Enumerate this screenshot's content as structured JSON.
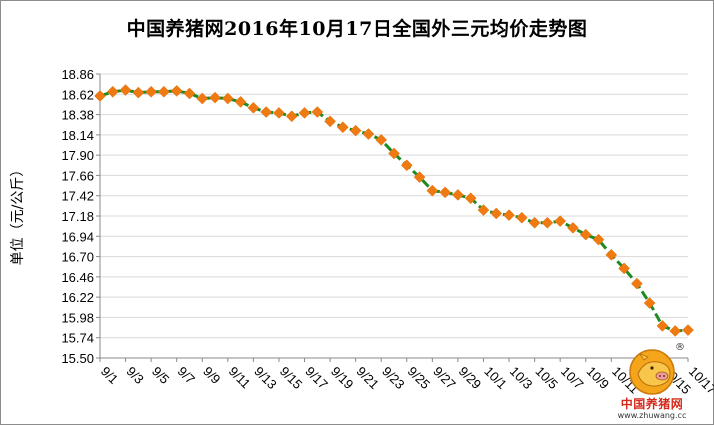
{
  "chart_data": {
    "type": "line",
    "title": "中国养猪网2016年10月17日全国外三元均价走势图",
    "ylabel": "单位（元/公斤）",
    "xlabel": "",
    "ylim": [
      15.5,
      18.86
    ],
    "yticks": [
      "18.86",
      "18.62",
      "18.38",
      "18.14",
      "17.90",
      "17.66",
      "17.42",
      "17.18",
      "16.94",
      "16.70",
      "16.46",
      "16.22",
      "15.98",
      "15.74",
      "15.50"
    ],
    "xtick_labels": [
      "9/1",
      "9/3",
      "9/5",
      "9/7",
      "9/9",
      "9/11",
      "9/13",
      "9/15",
      "9/17",
      "9/19",
      "9/21",
      "9/23",
      "9/25",
      "9/27",
      "9/29",
      "10/1",
      "10/3",
      "10/5",
      "10/7",
      "10/9",
      "10/11",
      "10/13",
      "10/15",
      "10/17"
    ],
    "grid": true,
    "legend": "none",
    "line_color": "#1f8a1f",
    "marker_color": "#f07a12",
    "series": [
      {
        "x": [
          "9/1",
          "9/2",
          "9/3",
          "9/4",
          "9/5",
          "9/6",
          "9/7",
          "9/8",
          "9/9",
          "9/10",
          "9/11",
          "9/12",
          "9/13",
          "9/14",
          "9/15",
          "9/16",
          "9/17",
          "9/18",
          "9/19",
          "9/20",
          "9/21",
          "9/22",
          "9/23",
          "9/24",
          "9/25",
          "9/26",
          "9/27",
          "9/28",
          "9/29",
          "9/30",
          "10/1",
          "10/2",
          "10/3",
          "10/4",
          "10/5",
          "10/6",
          "10/7",
          "10/8",
          "10/9",
          "10/10",
          "10/11",
          "10/12",
          "10/13",
          "10/14",
          "10/15",
          "10/16",
          "10/17"
        ],
        "values": [
          18.6,
          18.65,
          18.67,
          18.64,
          18.65,
          18.65,
          18.66,
          18.63,
          18.57,
          18.58,
          18.57,
          18.53,
          18.46,
          18.41,
          18.4,
          18.36,
          18.4,
          18.41,
          18.3,
          18.23,
          18.19,
          18.15,
          18.08,
          17.92,
          17.78,
          17.64,
          17.48,
          17.46,
          17.43,
          17.39,
          17.25,
          17.21,
          17.19,
          17.16,
          17.1,
          17.1,
          17.12,
          17.04,
          16.96,
          16.9,
          16.72,
          16.56,
          16.38,
          16.15,
          15.88,
          15.82,
          15.83
        ]
      }
    ]
  },
  "logo": {
    "brand_text": "中国养猪网",
    "url_text": "www.zhuwang.cc",
    "registered_mark": "®"
  }
}
